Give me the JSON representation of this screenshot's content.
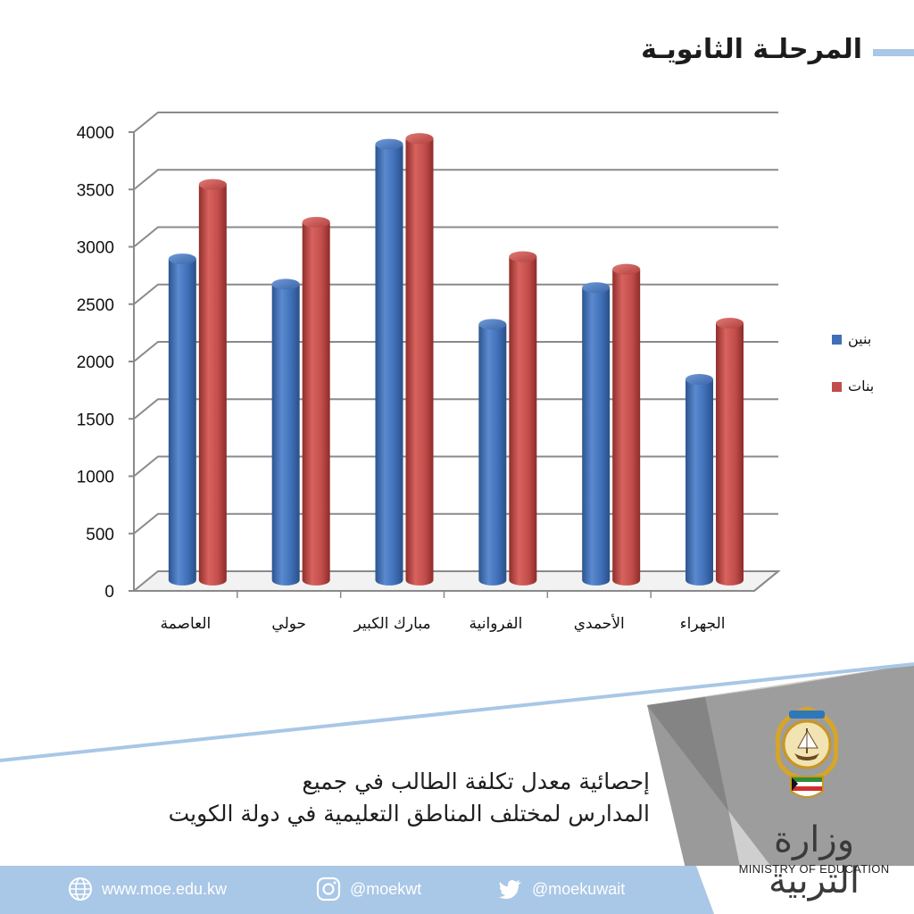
{
  "header": {
    "title": "المرحلـة الثانويـة"
  },
  "chart_data": {
    "type": "bar",
    "categories": [
      "العاصمة",
      "حولي",
      "مبارك الكبير",
      "الفروانية",
      "الأحمدي",
      "الجهراء"
    ],
    "series": [
      {
        "name": "بنين",
        "values": [
          2800,
          2580,
          3800,
          2230,
          2550,
          1750
        ],
        "color": "#3f6fb8"
      },
      {
        "name": "بنات",
        "values": [
          3450,
          3120,
          3850,
          2820,
          2710,
          2240
        ],
        "color": "#c24d4a"
      }
    ],
    "yticks": [
      "0",
      "500",
      "1000",
      "1500",
      "2000",
      "2500",
      "3000",
      "3500",
      "4000"
    ],
    "ylim": [
      0,
      4000
    ],
    "grid": true,
    "legend": "right",
    "style": "3d-cylinder"
  },
  "caption": {
    "line1": "إحصائية معدل تكلفة الطالب في جميع",
    "line2": "المدارس لمختلف المناطق التعليمية في دولة الكويت"
  },
  "branding": {
    "ministry_ar": "وزارة التربية",
    "ministry_en": "MINISTRY OF EDUCATION",
    "logo": "kuwait-emblem"
  },
  "footer": {
    "website": "www.moe.edu.kw",
    "instagram": "@moekwt",
    "twitter": "@moekuwait",
    "icons": [
      "globe-icon",
      "instagram-icon",
      "twitter-icon"
    ]
  },
  "colors": {
    "accent": "#a9c7e6",
    "footer": "#a9c7e6",
    "gray": "#8c8c8c"
  }
}
